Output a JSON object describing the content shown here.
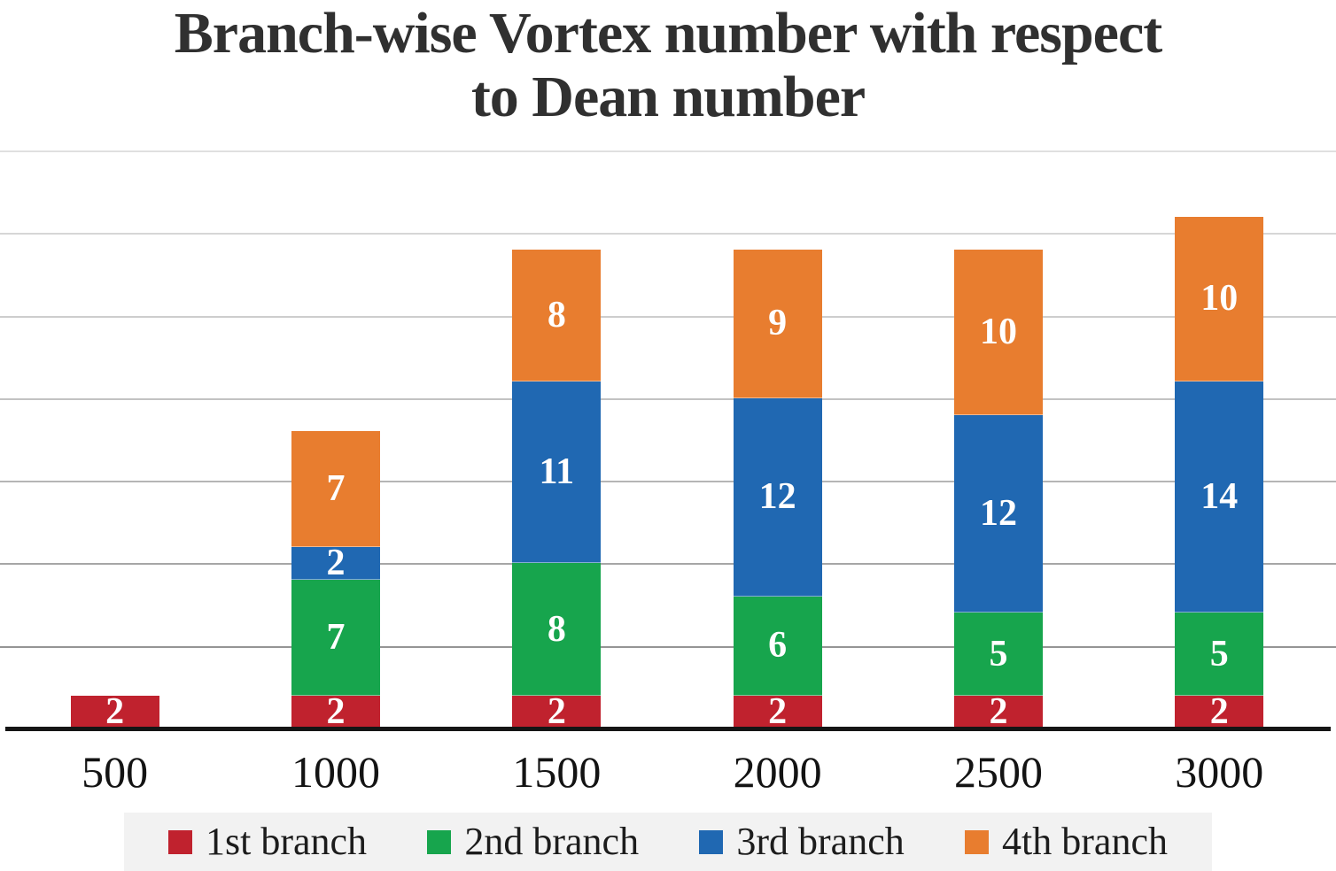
{
  "header": {
    "title_line1": "Branch-wise Vortex number with respect",
    "title_line2": "to Dean number"
  },
  "chart_data": {
    "type": "bar",
    "stacked": true,
    "title": "Branch-wise Vortex number with respect to Dean number",
    "xlabel": "",
    "ylabel": "",
    "categories": [
      "500",
      "1000",
      "1500",
      "2000",
      "2500",
      "3000"
    ],
    "series": [
      {
        "name": "1st branch",
        "color": "#c0222e",
        "values": [
          2,
          2,
          2,
          2,
          2,
          2
        ]
      },
      {
        "name": "2nd branch",
        "color": "#17a54d",
        "values": [
          0,
          7,
          8,
          6,
          5,
          5
        ]
      },
      {
        "name": "3rd branch",
        "color": "#2068b2",
        "values": [
          0,
          2,
          11,
          12,
          12,
          14
        ]
      },
      {
        "name": "4th branch",
        "color": "#e87d2f",
        "values": [
          0,
          7,
          8,
          9,
          10,
          10
        ]
      }
    ],
    "totals": [
      2,
      18,
      29,
      29,
      29,
      31
    ],
    "ylim": [
      0,
      35
    ],
    "grid_interval": 5,
    "grid": "horizontal",
    "y_axis_labels_visible": false,
    "data_labels": "segment values, white, centered",
    "legend_position": "bottom"
  },
  "style": {
    "series_colors": {
      "first": "#c0222e",
      "second": "#17a54d",
      "third": "#2068b2",
      "fourth": "#e87d2f"
    },
    "grid_line_colors": [
      "#e0e0e0",
      "#d6d6d6",
      "#cdcdcd",
      "#c2c2c2",
      "#b5b5b5",
      "#a6a6a6",
      "#959595"
    ],
    "axis_color": "#151515",
    "legend_background": "#f2f2f2",
    "title_color": "#303030",
    "data_label_color": "#ffffff"
  }
}
